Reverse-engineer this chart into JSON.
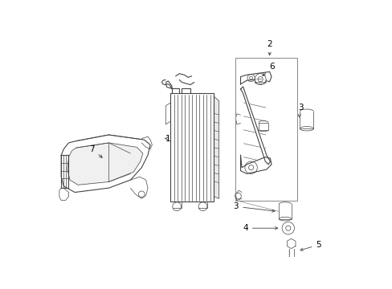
{
  "background": "#ffffff",
  "line_color": "#444444",
  "label_color": "#000000",
  "lw": 0.8,
  "lw_thin": 0.5,
  "fs": 7.5
}
